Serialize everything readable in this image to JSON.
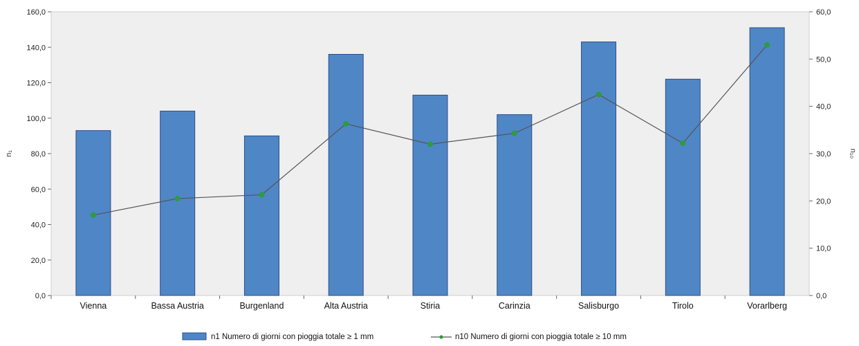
{
  "chart_data": {
    "type": "bar",
    "categories": [
      "Vienna",
      "Bassa Austria",
      "Burgenland",
      "Alta Austria",
      "Stiria",
      "Carinzia",
      "Salisburgo",
      "Tirolo",
      "Vorarlberg"
    ],
    "series": [
      {
        "name": "n1 Numero di giorni con pioggia totale ≥ 1 mm",
        "type": "bar",
        "axis": "left",
        "color": "#4f86c6",
        "values": [
          93,
          104,
          90,
          136,
          113,
          102,
          143,
          122,
          151
        ]
      },
      {
        "name": "n10 Numero di giorni con pioggia totale ≥ 10 mm",
        "type": "line",
        "axis": "right",
        "color": "#2e9b3e",
        "values": [
          17.0,
          20.5,
          21.3,
          36.3,
          32.0,
          34.3,
          42.5,
          32.2,
          53.0
        ]
      }
    ],
    "ylabel": "n₁",
    "y2label": "n₁₀",
    "ylim": [
      0,
      160
    ],
    "y2lim": [
      0,
      60
    ],
    "yticks": [
      "0,0",
      "20,0",
      "40,0",
      "60,0",
      "80,0",
      "100,0",
      "120,0",
      "140,0",
      "160,0"
    ],
    "y2ticks": [
      "0,0",
      "10,0",
      "20,0",
      "30,0",
      "40,0",
      "50,0",
      "60,0"
    ],
    "grid": false,
    "legend_position": "bottom",
    "plot_background": "#efefef"
  }
}
